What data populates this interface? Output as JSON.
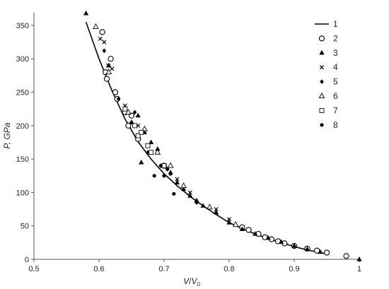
{
  "chart_data": {
    "type": "scatter",
    "xlabel": {
      "base": "V",
      "slash": "/",
      "sub_base": "V",
      "sub": "0"
    },
    "ylabel": "P, GPa",
    "xlim": [
      0.5,
      1.0
    ],
    "ylim": [
      0,
      370
    ],
    "x_ticks": [
      "0.5",
      "0.6",
      "0.7",
      "0.8",
      "0.9",
      "1"
    ],
    "y_ticks": [
      "0",
      "50",
      "100",
      "150",
      "200",
      "250",
      "300",
      "350"
    ],
    "grid": false,
    "legend_position": "top-right",
    "series": [
      {
        "name": "1",
        "marker": "line",
        "x": [
          0.58,
          0.6,
          0.62,
          0.64,
          0.66,
          0.68,
          0.7,
          0.72,
          0.74,
          0.76,
          0.78,
          0.8,
          0.82,
          0.84,
          0.86,
          0.88,
          0.9,
          0.92,
          0.94,
          0.95
        ],
        "y": [
          355,
          300,
          252,
          210,
          176,
          150,
          128,
          110,
          94,
          80,
          67,
          55,
          46,
          38,
          31,
          25,
          19,
          14,
          10,
          8
        ]
      },
      {
        "name": "2",
        "marker": "circle",
        "x": [
          0.605,
          0.61,
          0.612,
          0.618,
          0.625,
          0.628,
          0.64,
          0.645,
          0.65,
          0.66,
          0.7,
          0.82,
          0.83,
          0.845,
          0.855,
          0.865,
          0.875,
          0.885,
          0.9,
          0.92,
          0.935,
          0.95,
          0.98
        ],
        "y": [
          340,
          280,
          270,
          300,
          250,
          240,
          220,
          200,
          215,
          180,
          140,
          48,
          44,
          38,
          33,
          30,
          27,
          24,
          20,
          16,
          13,
          10,
          5
        ]
      },
      {
        "name": "3",
        "marker": "triangle",
        "x": [
          0.58,
          0.615,
          0.65,
          0.66,
          0.665,
          0.67,
          0.68,
          0.69,
          0.7,
          0.71,
          0.72,
          0.73,
          0.74,
          0.75,
          0.76,
          0.78,
          0.8,
          0.82,
          0.84,
          0.86,
          0.88,
          0.9,
          0.92,
          0.94,
          1.0
        ],
        "y": [
          368,
          290,
          205,
          215,
          145,
          190,
          175,
          165,
          140,
          130,
          115,
          105,
          95,
          88,
          80,
          70,
          55,
          45,
          38,
          32,
          26,
          20,
          15,
          11,
          0
        ]
      },
      {
        "name": "4",
        "marker": "x",
        "x": [
          0.602,
          0.608,
          0.614,
          0.62,
          0.64,
          0.66,
          0.7,
          0.72,
          0.74,
          0.78,
          0.8
        ],
        "y": [
          330,
          325,
          290,
          285,
          230,
          200,
          140,
          120,
          100,
          75,
          60
        ]
      },
      {
        "name": "5",
        "marker": "diamond",
        "x": [
          0.608,
          0.63,
          0.65,
          0.655,
          0.675,
          0.695,
          0.705,
          0.73,
          0.75
        ],
        "y": [
          312,
          240,
          205,
          220,
          160,
          140,
          135,
          110,
          85
        ]
      },
      {
        "name": "6",
        "marker": "triangle-open",
        "x": [
          0.595,
          0.615,
          0.645,
          0.67,
          0.69,
          0.71,
          0.73,
          0.77,
          0.81
        ],
        "y": [
          348,
          280,
          220,
          195,
          160,
          140,
          110,
          78,
          52
        ]
      },
      {
        "name": "7",
        "marker": "square-open",
        "x": [
          0.64,
          0.655,
          0.66,
          0.665,
          0.675,
          0.68,
          0.7
        ],
        "y": [
          225,
          200,
          185,
          190,
          170,
          160,
          140
        ]
      },
      {
        "name": "8",
        "marker": "dot",
        "x": [
          0.695,
          0.7,
          0.705,
          0.715,
          0.685,
          0.71
        ],
        "y": [
          140,
          125,
          135,
          98,
          125,
          128
        ]
      }
    ]
  }
}
